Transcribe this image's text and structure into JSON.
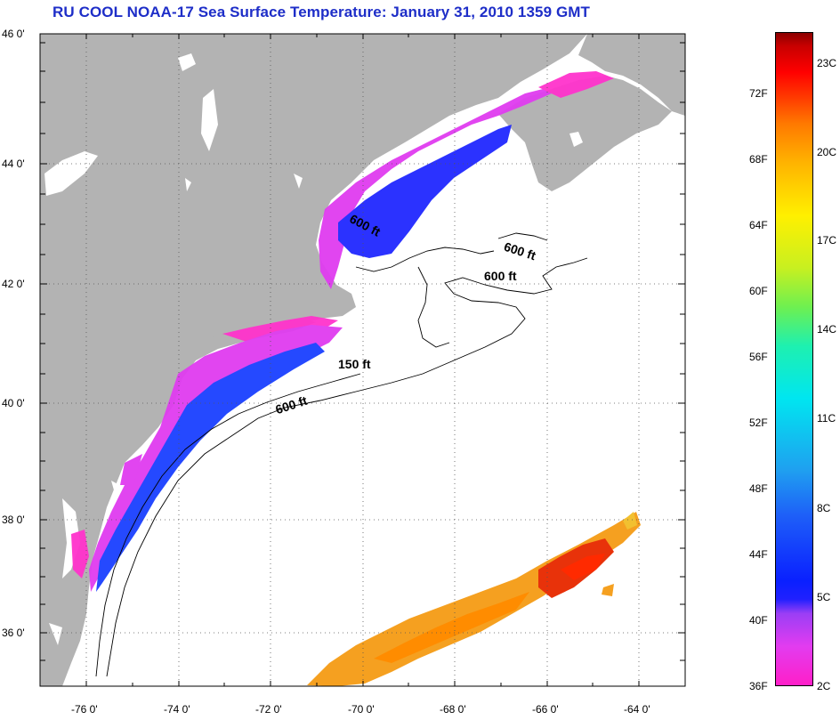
{
  "title": "RU COOL  NOAA-17  Sea Surface Temperature:  January 31, 2010 1359 GMT",
  "map": {
    "latitude_labels": [
      "46 0'",
      "44 0'",
      "42 0'",
      "40 0'",
      "38 0'",
      "36 0'"
    ],
    "longitude_labels": [
      "-76 0'",
      "-74 0'",
      "-72 0'",
      "-70 0'",
      "-68 0'",
      "-66 0'",
      "-64 0'"
    ],
    "depth_contour_labels": [
      "600 ft",
      "600 ft",
      "600 ft",
      "150 ft",
      "600 ft"
    ],
    "colors": {
      "land": "#b3b3b3",
      "ocean": "#ffffff",
      "grid": "#555555"
    }
  },
  "colorbar": {
    "fahrenheit_labels": [
      "72F",
      "68F",
      "64F",
      "60F",
      "56F",
      "52F",
      "48F",
      "44F",
      "40F",
      "36F"
    ],
    "celsius_labels": [
      "23C",
      "20C",
      "17C",
      "14C",
      "11C",
      "8C",
      "5C",
      "2C"
    ]
  }
}
